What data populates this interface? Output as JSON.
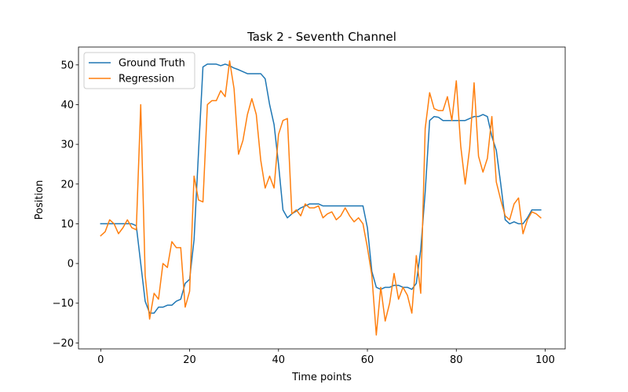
{
  "chart_data": {
    "type": "line",
    "title": "Task 2 - Seventh Channel",
    "xlabel": "Time points",
    "ylabel": "Position",
    "xlim": [
      -5,
      104.5
    ],
    "ylim": [
      -21.5,
      54.5
    ],
    "xticks": [
      0,
      20,
      40,
      60,
      80,
      100
    ],
    "yticks": [
      -20,
      -10,
      0,
      10,
      20,
      30,
      40,
      50
    ],
    "xtick_labels": [
      "0",
      "20",
      "40",
      "60",
      "80",
      "100"
    ],
    "ytick_labels": [
      "−20",
      "−10",
      "0",
      "10",
      "20",
      "30",
      "40",
      "50"
    ],
    "grid": false,
    "legend_position": "top-left",
    "x": [
      0,
      1,
      2,
      3,
      4,
      5,
      6,
      7,
      8,
      9,
      10,
      11,
      12,
      13,
      14,
      15,
      16,
      17,
      18,
      19,
      20,
      21,
      22,
      23,
      24,
      25,
      26,
      27,
      28,
      29,
      30,
      31,
      32,
      33,
      34,
      35,
      36,
      37,
      38,
      39,
      40,
      41,
      42,
      43,
      44,
      45,
      46,
      47,
      48,
      49,
      50,
      51,
      52,
      53,
      54,
      55,
      56,
      57,
      58,
      59,
      60,
      61,
      62,
      63,
      64,
      65,
      66,
      67,
      68,
      69,
      70,
      71,
      72,
      73,
      74,
      75,
      76,
      77,
      78,
      79,
      80,
      81,
      82,
      83,
      84,
      85,
      86,
      87,
      88,
      89,
      90,
      91,
      92,
      93,
      94,
      95,
      96,
      97,
      98,
      99
    ],
    "series": [
      {
        "name": "Ground Truth",
        "color": "#1f77b4",
        "values": [
          10,
          10,
          10,
          10,
          10,
          10,
          10,
          10,
          9.5,
          0,
          -9.5,
          -12.5,
          -12.5,
          -11,
          -11,
          -10.5,
          -10.5,
          -9.5,
          -9,
          -5,
          -4,
          6,
          28,
          49.5,
          50.2,
          50.2,
          50.2,
          49.8,
          50.2,
          49.8,
          49.2,
          48.8,
          48.3,
          47.8,
          47.8,
          47.8,
          47.8,
          46.5,
          40,
          35,
          25,
          13.5,
          11.5,
          12.5,
          13.2,
          14,
          14.5,
          15,
          15,
          15,
          14.5,
          14.5,
          14.5,
          14.5,
          14.5,
          14.5,
          14.5,
          14.5,
          14.5,
          14.5,
          9,
          -2,
          -6,
          -6.5,
          -6,
          -6,
          -5.5,
          -5.5,
          -6,
          -6,
          -6.5,
          -5,
          3.5,
          18,
          36,
          37,
          36.8,
          36,
          36,
          36,
          36,
          36,
          36,
          36.5,
          37,
          37,
          37.5,
          37,
          32,
          28.5,
          20,
          11,
          10,
          10.5,
          10,
          10,
          11.5,
          13.5,
          13.5,
          13.5
        ]
      },
      {
        "name": "Regression",
        "color": "#ff7f0e",
        "values": [
          7,
          8,
          11,
          10,
          7.5,
          9,
          11,
          9,
          8.5,
          40,
          -3,
          -14,
          -7.5,
          -9,
          0,
          -1,
          5.5,
          4,
          4,
          -11,
          -7,
          22,
          16,
          15.5,
          40,
          41,
          41,
          43.5,
          42,
          51,
          44,
          27.5,
          31,
          37.5,
          41.5,
          37.5,
          26,
          19,
          22,
          19,
          32.5,
          36,
          36.5,
          12.5,
          13.5,
          12,
          15,
          14,
          14,
          14.5,
          11.5,
          12.5,
          13,
          11,
          12,
          14,
          12,
          10.5,
          11.5,
          10,
          4,
          -3,
          -18,
          -6,
          -14.5,
          -10,
          -2.5,
          -9,
          -6,
          -8,
          -12.5,
          2,
          -7.5,
          34,
          43,
          39,
          38.5,
          38.5,
          42,
          36,
          46,
          29.5,
          20,
          29,
          45.5,
          27,
          23,
          26.5,
          37,
          20.5,
          16,
          12,
          11,
          15,
          16.5,
          7.5,
          11,
          13,
          12.5,
          11.5
        ]
      }
    ],
    "legend": [
      "Ground Truth",
      "Regression"
    ]
  }
}
